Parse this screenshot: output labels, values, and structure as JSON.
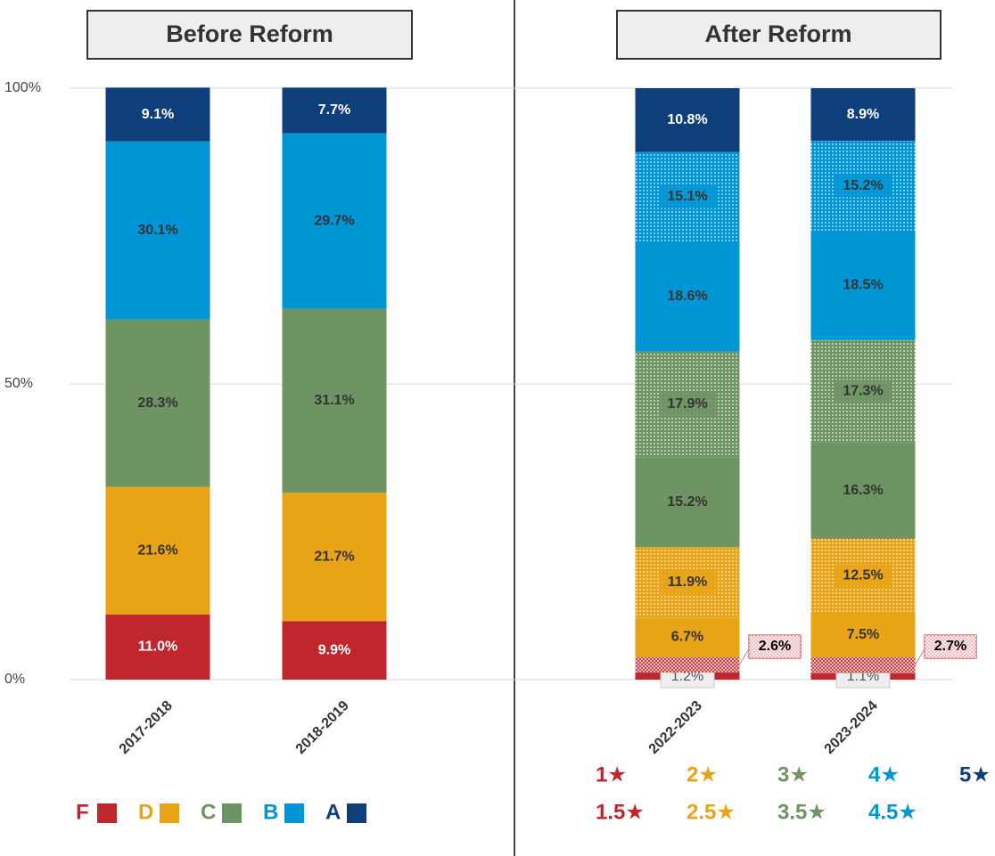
{
  "chart_data": [
    {
      "type": "stacked-bar",
      "title": "Before Reform",
      "categories": [
        "2017-2018",
        "2018-2019"
      ],
      "ylim": [
        0,
        100
      ],
      "yticks": [
        {
          "value": 0,
          "label": "0%"
        },
        {
          "value": 50,
          "label": "50%"
        },
        {
          "value": 100,
          "label": "100%"
        }
      ],
      "grid": true,
      "series": [
        {
          "name": "F",
          "color": "#c0272d",
          "values": [
            11.0,
            9.9
          ],
          "value_labels": [
            "11.0%",
            "9.9%"
          ]
        },
        {
          "name": "D",
          "color": "#e8a317",
          "values": [
            21.6,
            21.7
          ],
          "value_labels": [
            "21.6%",
            "21.7%"
          ]
        },
        {
          "name": "C",
          "color": "#6e9464",
          "values": [
            28.3,
            31.1
          ],
          "value_labels": [
            "28.3%",
            "31.1%"
          ]
        },
        {
          "name": "B",
          "color": "#0096d6",
          "values": [
            30.1,
            29.7
          ],
          "value_labels": [
            "30.1%",
            "29.7%"
          ]
        },
        {
          "name": "A",
          "color": "#0e3f7a",
          "values": [
            9.1,
            7.7
          ],
          "value_labels": [
            "9.1%",
            "7.7%"
          ]
        }
      ]
    },
    {
      "type": "stacked-bar",
      "title": "After Reform",
      "categories": [
        "2022-2023",
        "2023-2024"
      ],
      "ylim": [
        0,
        100
      ],
      "series": [
        {
          "name": "1★",
          "color": "#c0272d",
          "values": [
            1.2,
            1.1
          ],
          "value_labels": [
            "1.2%",
            "1.1%"
          ]
        },
        {
          "name": "1.5★",
          "color": "#c0272d",
          "pattern": "crosshatch",
          "values": [
            2.6,
            2.7
          ],
          "value_labels": [
            "2.6%",
            "2.7%"
          ]
        },
        {
          "name": "2★",
          "color": "#e8a317",
          "values": [
            6.7,
            7.5
          ],
          "value_labels": [
            "6.7%",
            "7.5%"
          ]
        },
        {
          "name": "2.5★",
          "color": "#e8a317",
          "pattern": "dots",
          "values": [
            11.9,
            12.5
          ],
          "value_labels": [
            "11.9%",
            "12.5%"
          ]
        },
        {
          "name": "3★",
          "color": "#6e9464",
          "values": [
            15.2,
            16.3
          ],
          "value_labels": [
            "15.2%",
            "16.3%"
          ]
        },
        {
          "name": "3.5★",
          "color": "#6e9464",
          "pattern": "dots",
          "values": [
            17.9,
            17.3
          ],
          "value_labels": [
            "17.9%",
            "17.3%"
          ]
        },
        {
          "name": "4★",
          "color": "#0096d6",
          "values": [
            18.6,
            18.5
          ],
          "value_labels": [
            "18.6%",
            "18.5%"
          ]
        },
        {
          "name": "4.5★",
          "color": "#0096d6",
          "pattern": "dots",
          "values": [
            15.1,
            15.2
          ],
          "value_labels": [
            "15.1%",
            "15.2%"
          ]
        },
        {
          "name": "5★",
          "color": "#0e3f7a",
          "values": [
            10.8,
            8.9
          ],
          "value_labels": [
            "10.8%",
            "8.9%"
          ]
        }
      ]
    }
  ]
}
